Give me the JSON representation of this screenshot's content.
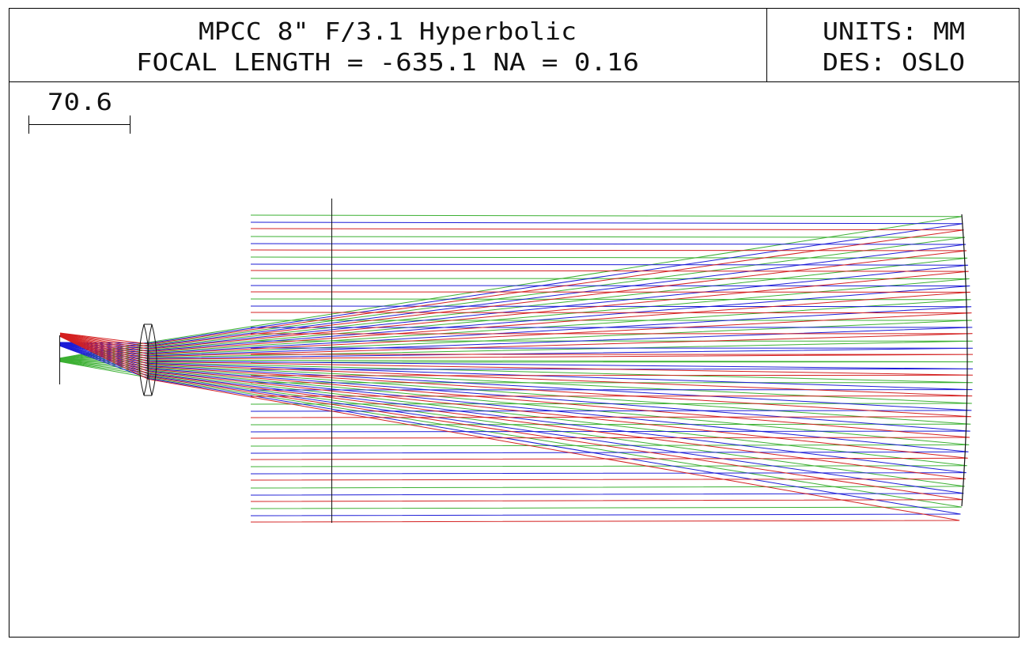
{
  "title_block": {
    "title": "MPCC 8\" F/3.1 Hyperbolic",
    "subtitle": "FOCAL LENGTH = -635.1  NA = 0.16",
    "units": "UNITS: MM",
    "designer": "DES: OSLO"
  },
  "scale_bar": {
    "label": "70.6"
  },
  "colors": {
    "frame": "#000000",
    "ray_red": "#d42020",
    "ray_blue": "#1c1cd6",
    "ray_green": "#3cb033",
    "optics": "#111111"
  },
  "ray_fields": [
    {
      "color": "green",
      "angle": "on-axis"
    },
    {
      "color": "blue",
      "angle": "mid-field"
    },
    {
      "color": "red",
      "angle": "edge-field"
    }
  ]
}
